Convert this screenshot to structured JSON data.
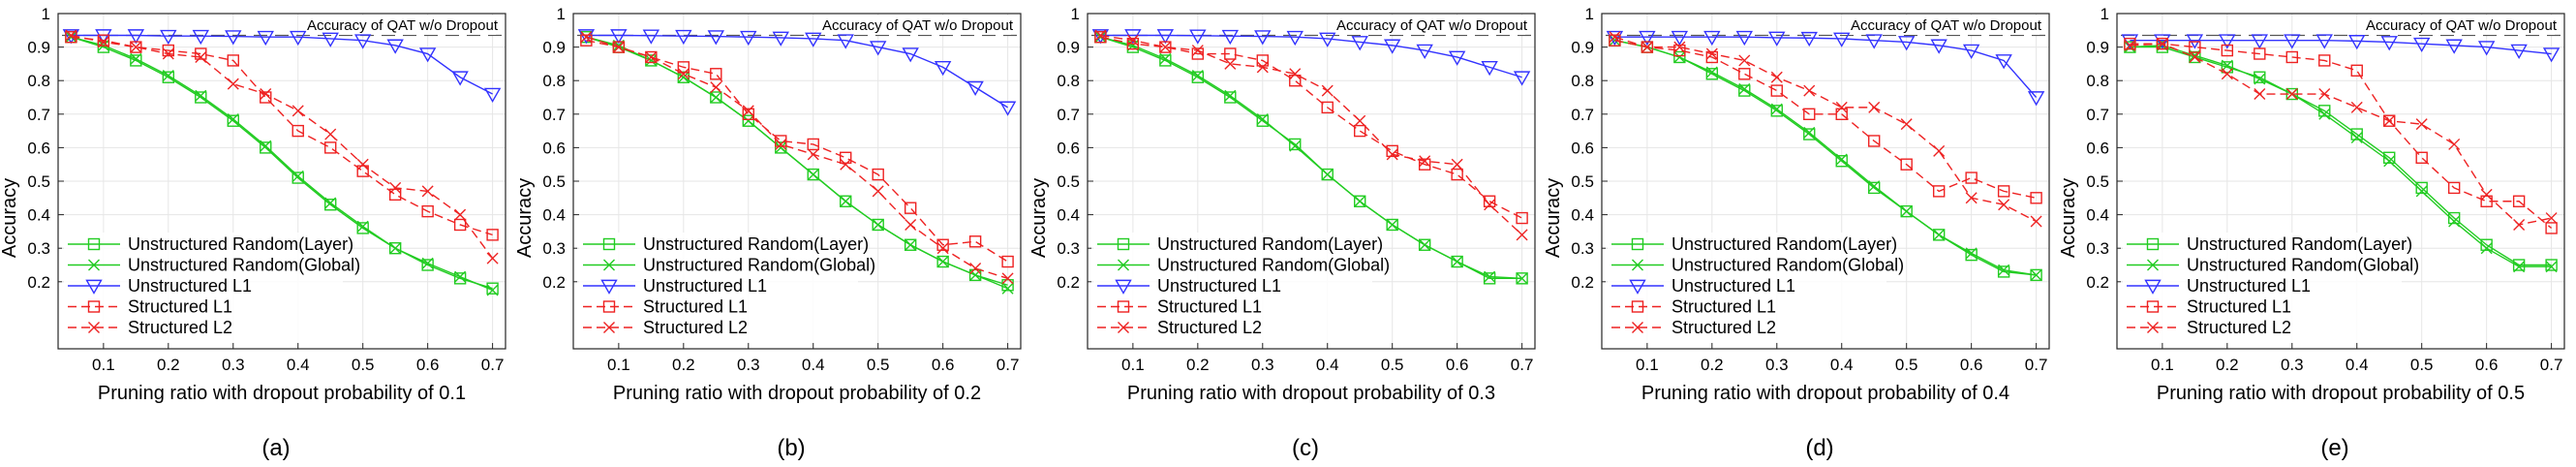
{
  "chart_data": [
    {
      "type": "line",
      "panel_label": "(a)",
      "xlabel": "Pruning ratio with dropout probability of 0.1",
      "ylabel": "Accuracy",
      "xlim": [
        0.03,
        0.72
      ],
      "ylim": [
        0.0,
        1.0
      ],
      "xticks": [
        0.1,
        0.2,
        0.3,
        0.4,
        0.5,
        0.6,
        0.7
      ],
      "yticks": [
        0.2,
        0.3,
        0.4,
        0.5,
        0.6,
        0.7,
        0.8,
        0.9,
        1
      ],
      "grid": true,
      "legend_position": "bottom-left",
      "reference_line": {
        "label": "Accuracy of QAT w/o Dropout",
        "y": 0.935
      },
      "x": [
        0.05,
        0.1,
        0.15,
        0.2,
        0.25,
        0.3,
        0.35,
        0.4,
        0.45,
        0.5,
        0.55,
        0.6,
        0.65,
        0.7
      ],
      "series": [
        {
          "name": "Unstructured Random(Layer)",
          "color": "#22cc22",
          "marker": "square",
          "dash": "solid",
          "values": [
            0.93,
            0.9,
            0.86,
            0.81,
            0.75,
            0.68,
            0.6,
            0.51,
            0.43,
            0.36,
            0.3,
            0.25,
            0.21,
            0.18
          ]
        },
        {
          "name": "Unstructured Random(Global)",
          "color": "#22cc22",
          "marker": "x",
          "dash": "solid",
          "values": [
            0.93,
            0.905,
            0.865,
            0.815,
            0.755,
            0.685,
            0.605,
            0.515,
            0.435,
            0.365,
            0.3,
            0.255,
            0.215,
            0.175
          ]
        },
        {
          "name": "Unstructured L1",
          "color": "#3333ff",
          "marker": "triangle-down",
          "dash": "solid",
          "values": [
            0.935,
            0.935,
            0.935,
            0.933,
            0.933,
            0.932,
            0.93,
            0.93,
            0.925,
            0.92,
            0.905,
            0.88,
            0.81,
            0.76
          ]
        },
        {
          "name": "Structured L1",
          "color": "#ee2222",
          "marker": "square",
          "dash": "dashed",
          "values": [
            0.93,
            0.92,
            0.9,
            0.89,
            0.88,
            0.86,
            0.75,
            0.65,
            0.6,
            0.53,
            0.46,
            0.41,
            0.37,
            0.34
          ]
        },
        {
          "name": "Structured L2",
          "color": "#ee2222",
          "marker": "x",
          "dash": "dashed",
          "values": [
            0.935,
            0.915,
            0.9,
            0.88,
            0.87,
            0.79,
            0.76,
            0.71,
            0.64,
            0.55,
            0.48,
            0.47,
            0.4,
            0.27
          ]
        }
      ]
    },
    {
      "type": "line",
      "panel_label": "(b)",
      "xlabel": "Pruning ratio with dropout probability of 0.2",
      "ylabel": "Accuracy",
      "xlim": [
        0.03,
        0.72
      ],
      "ylim": [
        0.0,
        1.0
      ],
      "xticks": [
        0.1,
        0.2,
        0.3,
        0.4,
        0.5,
        0.6,
        0.7
      ],
      "yticks": [
        0.2,
        0.3,
        0.4,
        0.5,
        0.6,
        0.7,
        0.8,
        0.9,
        1
      ],
      "grid": true,
      "legend_position": "bottom-left",
      "reference_line": {
        "label": "Accuracy of QAT w/o Dropout",
        "y": 0.935
      },
      "x": [
        0.05,
        0.1,
        0.15,
        0.2,
        0.25,
        0.3,
        0.35,
        0.4,
        0.45,
        0.5,
        0.55,
        0.6,
        0.65,
        0.7
      ],
      "series": [
        {
          "name": "Unstructured Random(Layer)",
          "color": "#22cc22",
          "marker": "square",
          "dash": "solid",
          "values": [
            0.93,
            0.9,
            0.86,
            0.81,
            0.75,
            0.68,
            0.6,
            0.52,
            0.44,
            0.37,
            0.31,
            0.26,
            0.22,
            0.19
          ]
        },
        {
          "name": "Unstructured Random(Global)",
          "color": "#22cc22",
          "marker": "x",
          "dash": "solid",
          "values": [
            0.93,
            0.905,
            0.86,
            0.81,
            0.75,
            0.68,
            0.6,
            0.52,
            0.44,
            0.37,
            0.31,
            0.26,
            0.22,
            0.18
          ]
        },
        {
          "name": "Unstructured L1",
          "color": "#3333ff",
          "marker": "triangle-down",
          "dash": "solid",
          "values": [
            0.935,
            0.935,
            0.934,
            0.933,
            0.932,
            0.93,
            0.928,
            0.925,
            0.92,
            0.9,
            0.88,
            0.84,
            0.78,
            0.72
          ]
        },
        {
          "name": "Structured L1",
          "color": "#ee2222",
          "marker": "square",
          "dash": "dashed",
          "values": [
            0.92,
            0.9,
            0.87,
            0.84,
            0.82,
            0.7,
            0.62,
            0.61,
            0.57,
            0.52,
            0.42,
            0.31,
            0.32,
            0.26
          ]
        },
        {
          "name": "Structured L2",
          "color": "#ee2222",
          "marker": "x",
          "dash": "dashed",
          "values": [
            0.93,
            0.9,
            0.87,
            0.82,
            0.78,
            0.71,
            0.61,
            0.58,
            0.55,
            0.47,
            0.37,
            0.3,
            0.24,
            0.21
          ]
        }
      ]
    },
    {
      "type": "line",
      "panel_label": "(c)",
      "xlabel": "Pruning ratio with dropout probability of 0.3",
      "ylabel": "Accuracy",
      "xlim": [
        0.03,
        0.72
      ],
      "ylim": [
        0.0,
        1.0
      ],
      "xticks": [
        0.1,
        0.2,
        0.3,
        0.4,
        0.5,
        0.6,
        0.7
      ],
      "yticks": [
        0.2,
        0.3,
        0.4,
        0.5,
        0.6,
        0.7,
        0.8,
        0.9,
        1
      ],
      "grid": true,
      "legend_position": "bottom-left",
      "reference_line": {
        "label": "Accuracy of QAT w/o Dropout",
        "y": 0.935
      },
      "x": [
        0.05,
        0.1,
        0.15,
        0.2,
        0.25,
        0.3,
        0.35,
        0.4,
        0.45,
        0.5,
        0.55,
        0.6,
        0.65,
        0.7
      ],
      "series": [
        {
          "name": "Unstructured Random(Layer)",
          "color": "#22cc22",
          "marker": "square",
          "dash": "solid",
          "values": [
            0.93,
            0.9,
            0.86,
            0.81,
            0.75,
            0.68,
            0.61,
            0.52,
            0.44,
            0.37,
            0.31,
            0.26,
            0.21,
            0.21
          ]
        },
        {
          "name": "Unstructured Random(Global)",
          "color": "#22cc22",
          "marker": "x",
          "dash": "solid",
          "values": [
            0.93,
            0.905,
            0.865,
            0.815,
            0.755,
            0.685,
            0.605,
            0.52,
            0.44,
            0.37,
            0.31,
            0.26,
            0.215,
            0.21
          ]
        },
        {
          "name": "Unstructured L1",
          "color": "#3333ff",
          "marker": "triangle-down",
          "dash": "solid",
          "values": [
            0.935,
            0.935,
            0.935,
            0.934,
            0.933,
            0.932,
            0.93,
            0.925,
            0.915,
            0.905,
            0.89,
            0.87,
            0.84,
            0.81
          ]
        },
        {
          "name": "Structured L1",
          "color": "#ee2222",
          "marker": "square",
          "dash": "dashed",
          "values": [
            0.93,
            0.91,
            0.9,
            0.88,
            0.88,
            0.86,
            0.8,
            0.72,
            0.65,
            0.59,
            0.55,
            0.52,
            0.44,
            0.39
          ]
        },
        {
          "name": "Structured L2",
          "color": "#ee2222",
          "marker": "x",
          "dash": "dashed",
          "values": [
            0.935,
            0.92,
            0.9,
            0.89,
            0.85,
            0.84,
            0.82,
            0.77,
            0.68,
            0.58,
            0.56,
            0.55,
            0.43,
            0.34
          ]
        }
      ]
    },
    {
      "type": "line",
      "panel_label": "(d)",
      "xlabel": "Pruning ratio with dropout probability of 0.4",
      "ylabel": "Accuracy",
      "xlim": [
        0.03,
        0.72
      ],
      "ylim": [
        0.0,
        1.0
      ],
      "xticks": [
        0.1,
        0.2,
        0.3,
        0.4,
        0.5,
        0.6,
        0.7
      ],
      "yticks": [
        0.2,
        0.3,
        0.4,
        0.5,
        0.6,
        0.7,
        0.8,
        0.9,
        1
      ],
      "grid": true,
      "legend_position": "bottom-left",
      "reference_line": {
        "label": "Accuracy of QAT w/o Dropout",
        "y": 0.935
      },
      "x": [
        0.05,
        0.1,
        0.15,
        0.2,
        0.25,
        0.3,
        0.35,
        0.4,
        0.45,
        0.5,
        0.55,
        0.6,
        0.65,
        0.7
      ],
      "series": [
        {
          "name": "Unstructured Random(Layer)",
          "color": "#22cc22",
          "marker": "square",
          "dash": "solid",
          "values": [
            0.92,
            0.9,
            0.87,
            0.82,
            0.77,
            0.71,
            0.64,
            0.56,
            0.48,
            0.41,
            0.34,
            0.28,
            0.23,
            0.22
          ]
        },
        {
          "name": "Unstructured Random(Global)",
          "color": "#22cc22",
          "marker": "x",
          "dash": "solid",
          "values": [
            0.92,
            0.9,
            0.87,
            0.825,
            0.775,
            0.715,
            0.645,
            0.565,
            0.485,
            0.41,
            0.34,
            0.285,
            0.235,
            0.22
          ]
        },
        {
          "name": "Unstructured L1",
          "color": "#3333ff",
          "marker": "triangle-down",
          "dash": "solid",
          "values": [
            0.93,
            0.93,
            0.93,
            0.93,
            0.93,
            0.928,
            0.927,
            0.925,
            0.92,
            0.915,
            0.905,
            0.89,
            0.86,
            0.75
          ]
        },
        {
          "name": "Structured L1",
          "color": "#ee2222",
          "marker": "square",
          "dash": "dashed",
          "values": [
            0.92,
            0.9,
            0.89,
            0.87,
            0.82,
            0.77,
            0.7,
            0.7,
            0.62,
            0.55,
            0.47,
            0.51,
            0.47,
            0.45
          ]
        },
        {
          "name": "Structured L2",
          "color": "#ee2222",
          "marker": "x",
          "dash": "dashed",
          "values": [
            0.93,
            0.9,
            0.9,
            0.88,
            0.86,
            0.81,
            0.77,
            0.72,
            0.72,
            0.67,
            0.59,
            0.45,
            0.43,
            0.38
          ]
        }
      ]
    },
    {
      "type": "line",
      "panel_label": "(e)",
      "xlabel": "Pruning ratio with dropout probability of 0.5",
      "ylabel": "Accuracy",
      "xlim": [
        0.03,
        0.72
      ],
      "ylim": [
        0.0,
        1.0
      ],
      "xticks": [
        0.1,
        0.2,
        0.3,
        0.4,
        0.5,
        0.6,
        0.7
      ],
      "yticks": [
        0.2,
        0.3,
        0.4,
        0.5,
        0.6,
        0.7,
        0.8,
        0.9,
        1
      ],
      "grid": true,
      "legend_position": "bottom-left",
      "reference_line": {
        "label": "Accuracy of QAT w/o Dropout",
        "y": 0.935
      },
      "x": [
        0.05,
        0.1,
        0.15,
        0.2,
        0.25,
        0.3,
        0.35,
        0.4,
        0.45,
        0.5,
        0.55,
        0.6,
        0.65,
        0.7
      ],
      "series": [
        {
          "name": "Unstructured Random(Layer)",
          "color": "#22cc22",
          "marker": "square",
          "dash": "solid",
          "values": [
            0.9,
            0.9,
            0.87,
            0.84,
            0.81,
            0.76,
            0.71,
            0.64,
            0.57,
            0.48,
            0.39,
            0.31,
            0.25,
            0.25
          ]
        },
        {
          "name": "Unstructured Random(Global)",
          "color": "#22cc22",
          "marker": "x",
          "dash": "solid",
          "values": [
            0.9,
            0.905,
            0.875,
            0.845,
            0.805,
            0.76,
            0.7,
            0.63,
            0.56,
            0.47,
            0.38,
            0.3,
            0.245,
            0.245
          ]
        },
        {
          "name": "Unstructured L1",
          "color": "#3333ff",
          "marker": "triangle-down",
          "dash": "solid",
          "values": [
            0.92,
            0.92,
            0.92,
            0.92,
            0.92,
            0.92,
            0.92,
            0.918,
            0.915,
            0.91,
            0.905,
            0.9,
            0.89,
            0.88
          ]
        },
        {
          "name": "Structured L1",
          "color": "#ee2222",
          "marker": "square",
          "dash": "dashed",
          "values": [
            0.91,
            0.91,
            0.9,
            0.89,
            0.88,
            0.87,
            0.86,
            0.83,
            0.68,
            0.57,
            0.48,
            0.44,
            0.44,
            0.36
          ]
        },
        {
          "name": "Structured L2",
          "color": "#ee2222",
          "marker": "x",
          "dash": "dashed",
          "values": [
            0.905,
            0.91,
            0.87,
            0.82,
            0.76,
            0.76,
            0.76,
            0.72,
            0.68,
            0.67,
            0.61,
            0.46,
            0.37,
            0.39
          ]
        }
      ]
    }
  ]
}
